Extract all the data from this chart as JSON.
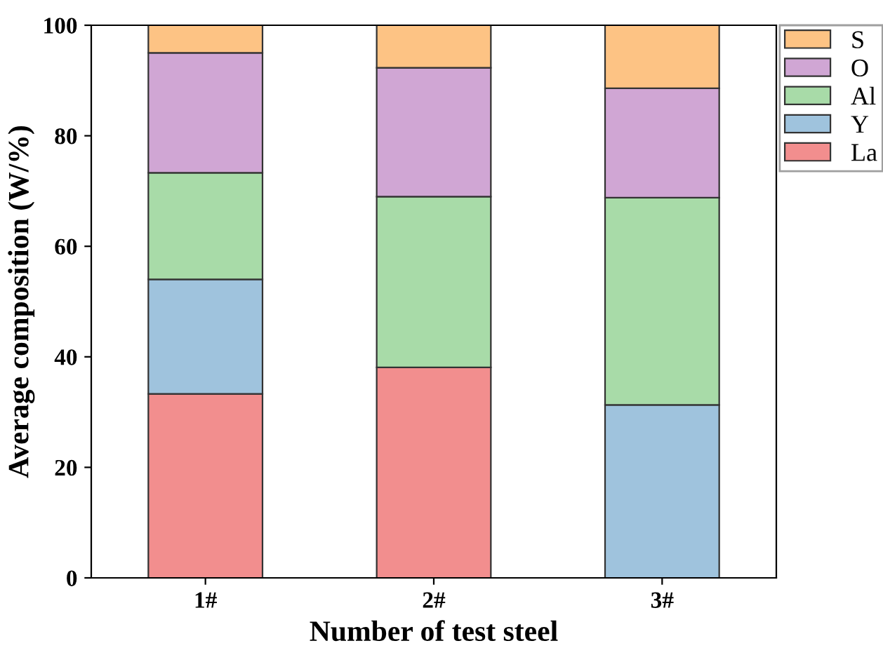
{
  "chart_data": {
    "type": "bar",
    "xlabel": "Number of test steel",
    "ylabel": "Average composition (W/%)",
    "categories": [
      "1#",
      "2#",
      "3#"
    ],
    "stacked": true,
    "series": [
      {
        "name": "La",
        "color": "#f28e8e",
        "values": [
          33.3,
          38.1,
          0
        ]
      },
      {
        "name": "Y",
        "color": "#9fc3dd",
        "values": [
          20.7,
          0,
          31.3
        ]
      },
      {
        "name": "Al",
        "color": "#a8dba8",
        "values": [
          19.3,
          30.9,
          37.5
        ]
      },
      {
        "name": "O",
        "color": "#d0a6d4",
        "values": [
          21.7,
          23.3,
          19.8
        ]
      },
      {
        "name": "S",
        "color": "#fdc384",
        "values": [
          5,
          7.7,
          11.4
        ]
      }
    ],
    "ylim": [
      0,
      100
    ],
    "yticks": [
      0,
      20,
      40,
      60,
      80,
      100
    ],
    "grid": false,
    "legend": "top right"
  }
}
